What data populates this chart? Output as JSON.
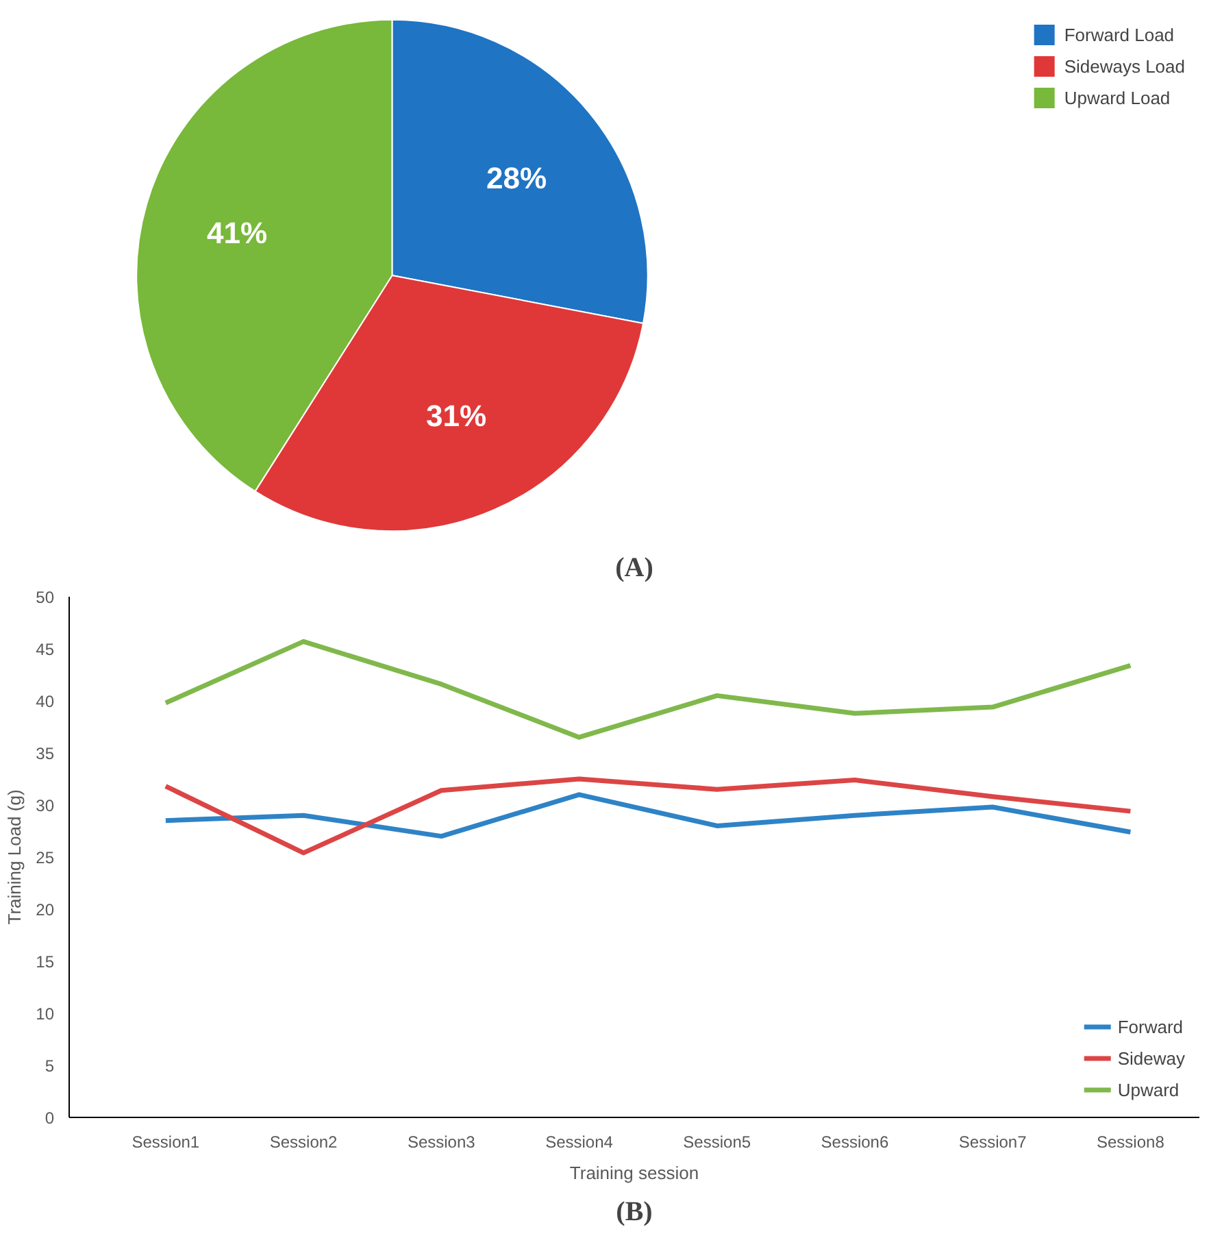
{
  "chart_data": [
    {
      "type": "pie",
      "title": "(A)",
      "categories": [
        "Forward Load",
        "Sideways Load",
        "Upward Load"
      ],
      "values": [
        28,
        31,
        41
      ],
      "colors": [
        "#1f74c4",
        "#e03838",
        "#78b83a"
      ],
      "value_labels": [
        "28%",
        "31%",
        "41%"
      ],
      "legend": "top right"
    },
    {
      "type": "line",
      "title": "(B)",
      "xlabel": "Training session",
      "ylabel": "Training Load (g)",
      "categories": [
        "Session1",
        "Session2",
        "Session3",
        "Session4",
        "Session5",
        "Session6",
        "Session7",
        "Session8"
      ],
      "ylim": [
        0,
        50
      ],
      "yticks": [
        0,
        5,
        10,
        15,
        20,
        25,
        30,
        35,
        40,
        45,
        50
      ],
      "grid": false,
      "legend": "bottom right",
      "marker": "none",
      "line_style": "solid",
      "series": [
        {
          "name": "Forward",
          "color": "#2e83c6",
          "values": [
            28.5,
            29,
            27,
            31,
            28,
            29,
            29.8,
            27.4
          ]
        },
        {
          "name": "Sideway",
          "color": "#dc4545",
          "values": [
            31.8,
            25.4,
            31.4,
            32.5,
            31.5,
            32.4,
            30.8,
            29.4
          ]
        },
        {
          "name": "Upward",
          "color": "#80b84c",
          "values": [
            39.8,
            45.7,
            41.6,
            36.5,
            40.5,
            38.8,
            39.4,
            43.4
          ]
        }
      ]
    }
  ]
}
